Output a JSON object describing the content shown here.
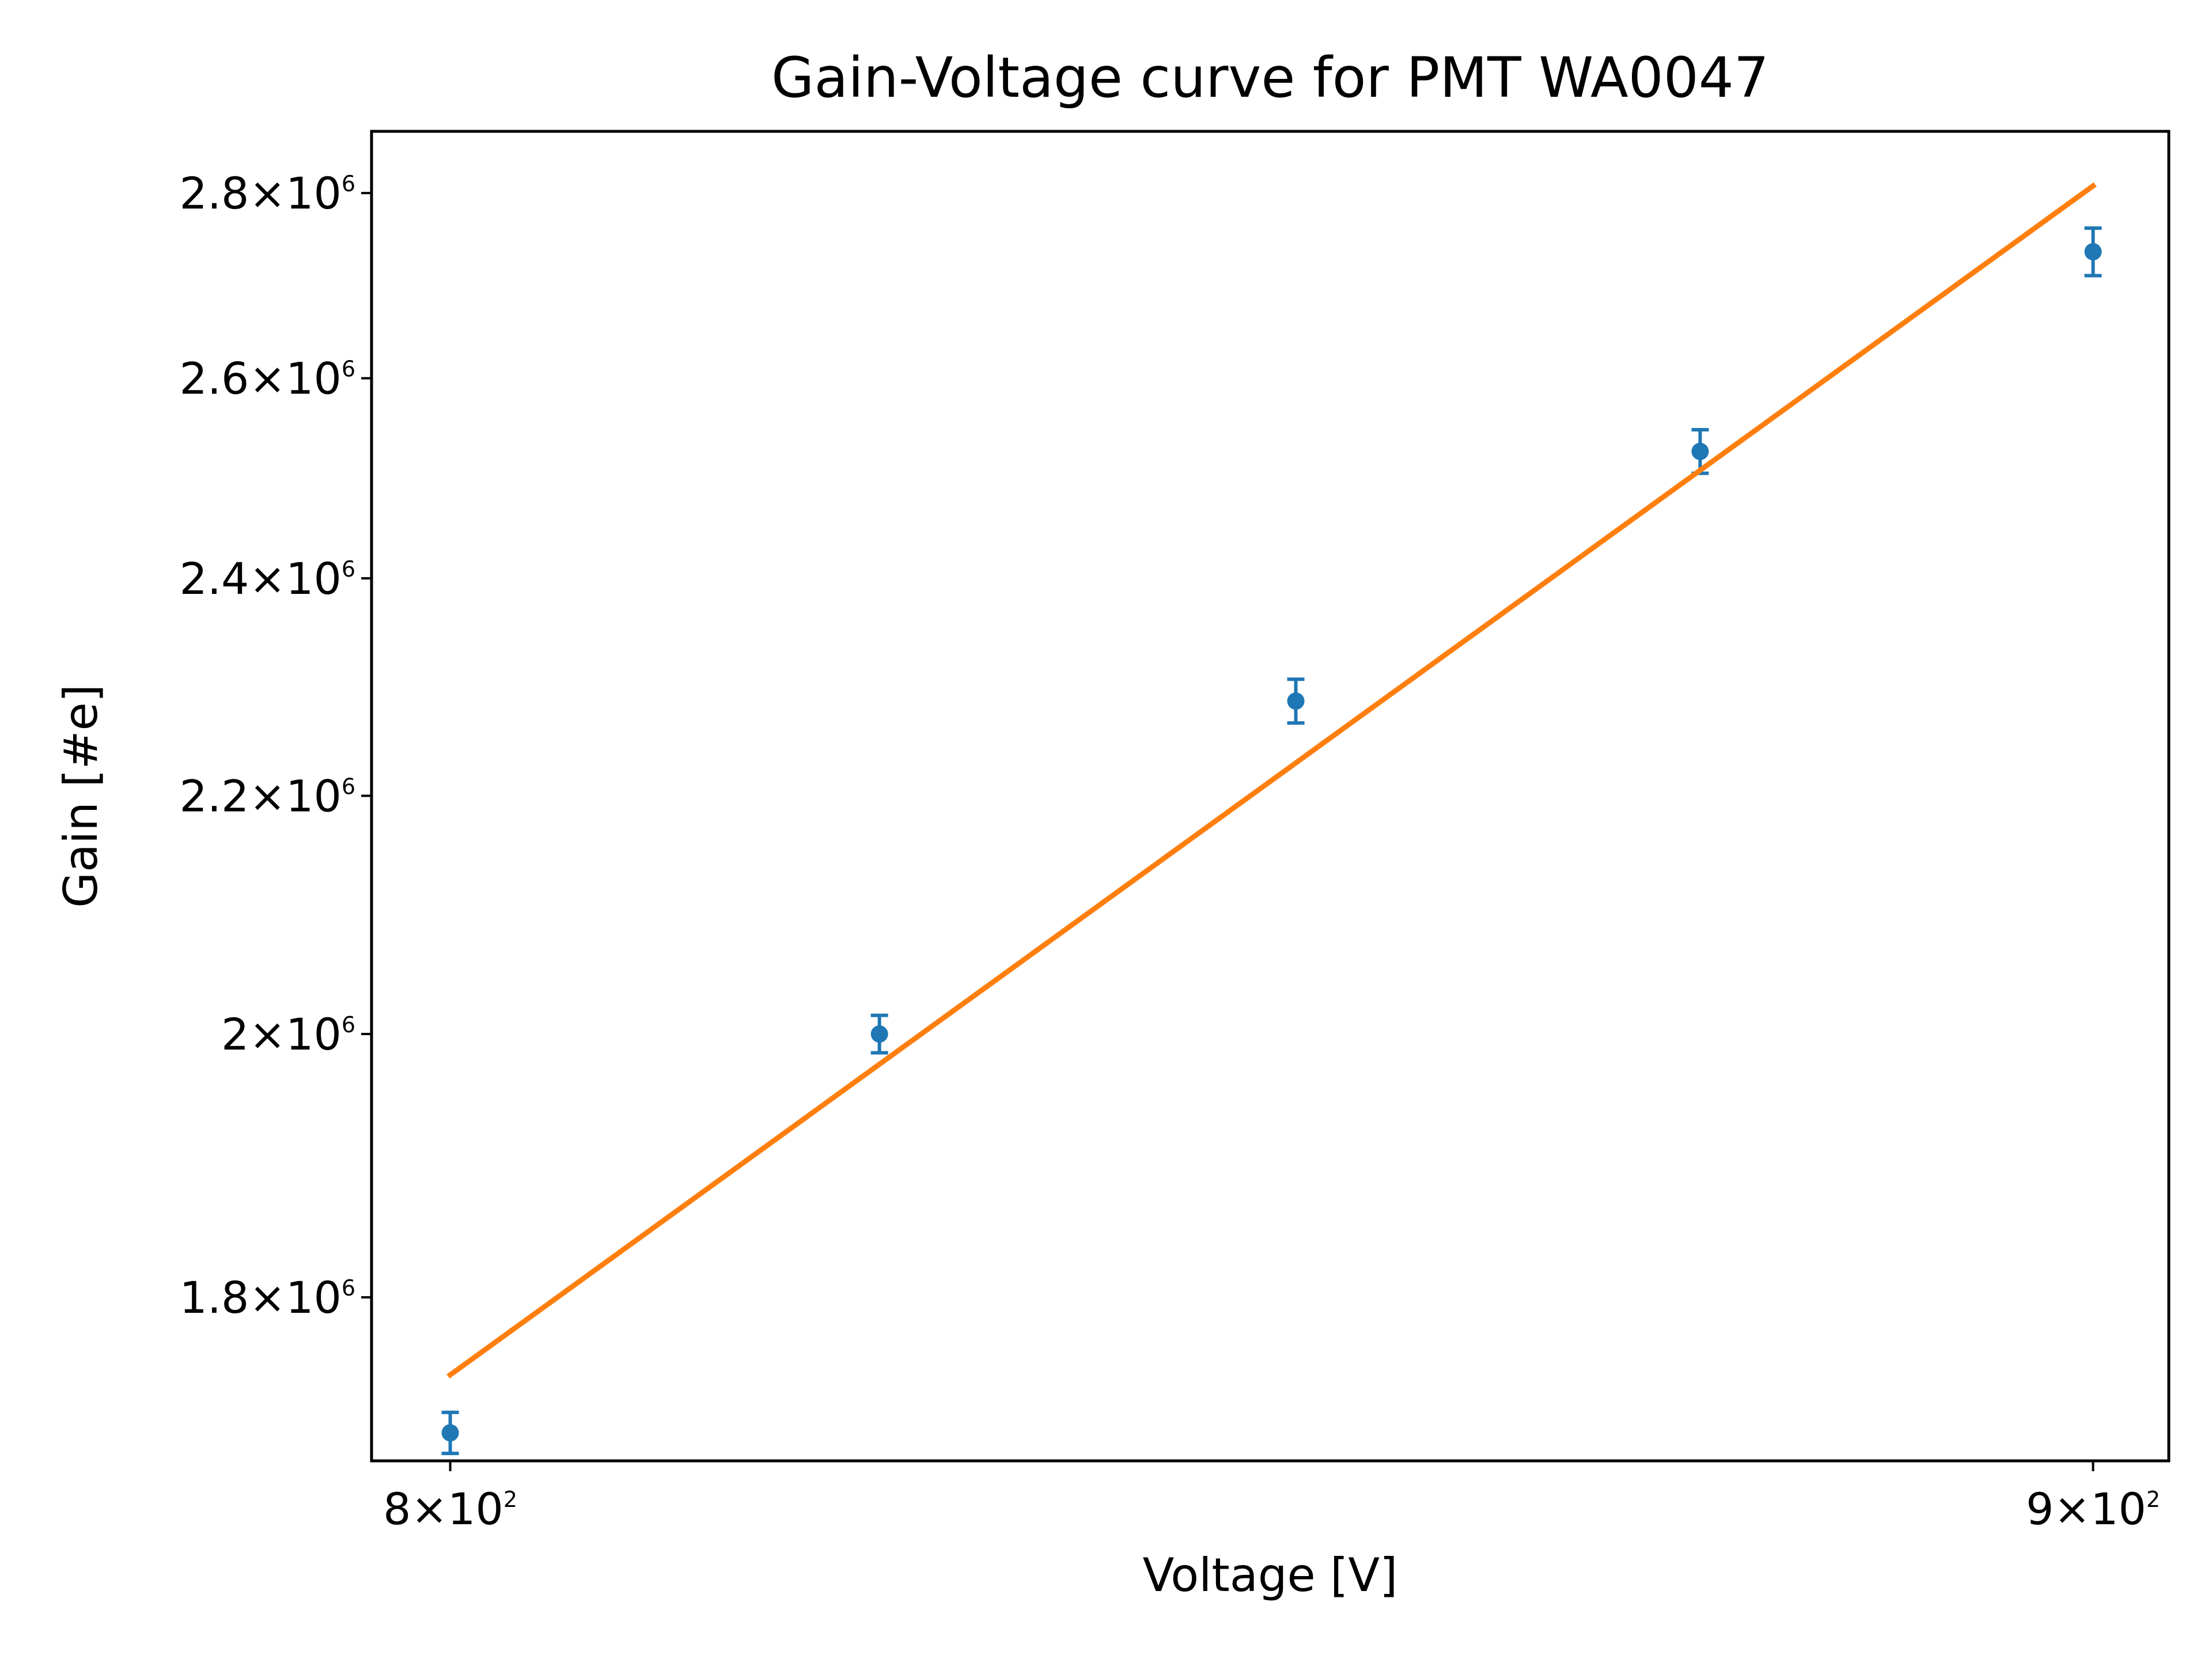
{
  "chart_data": {
    "type": "scatter",
    "title": "Gain-Voltage curve for PMT WA0047",
    "xlabel": "Voltage [V]",
    "ylabel": "Gain [#e]",
    "xscale": "log",
    "yscale": "log",
    "xlim": [
      795.5,
      904.9
    ],
    "ylim": [
      1686000,
      2870000
    ],
    "grid": false,
    "legend": "none",
    "x_ticks": [
      {
        "value": 800,
        "mantissa": "8",
        "base": "10",
        "exp": "2"
      },
      {
        "value": 900,
        "mantissa": "9",
        "base": "10",
        "exp": "2"
      }
    ],
    "y_ticks": [
      {
        "value": 1800000,
        "mantissa": "1.8",
        "base": "10",
        "exp": "6"
      },
      {
        "value": 2000000,
        "mantissa": "2",
        "base": "10",
        "exp": "6"
      },
      {
        "value": 2200000,
        "mantissa": "2.2",
        "base": "10",
        "exp": "6"
      },
      {
        "value": 2400000,
        "mantissa": "2.4",
        "base": "10",
        "exp": "6"
      },
      {
        "value": 2600000,
        "mantissa": "2.6",
        "base": "10",
        "exp": "6"
      },
      {
        "value": 2800000,
        "mantissa": "2.8",
        "base": "10",
        "exp": "6"
      }
    ],
    "series": [
      {
        "kind": "errorbar",
        "color": "#1f77b4",
        "x": [
          800,
          825,
          850,
          875,
          900
        ],
        "y": [
          1705000,
          2000000,
          2285000,
          2525000,
          2735000
        ],
        "yerr": [
          14000,
          15000,
          20000,
          22000,
          26000
        ]
      },
      {
        "kind": "fit-line",
        "color": "#ff7f0e",
        "x": [
          800,
          900
        ],
        "y": [
          1745000,
          2808000
        ]
      }
    ]
  }
}
